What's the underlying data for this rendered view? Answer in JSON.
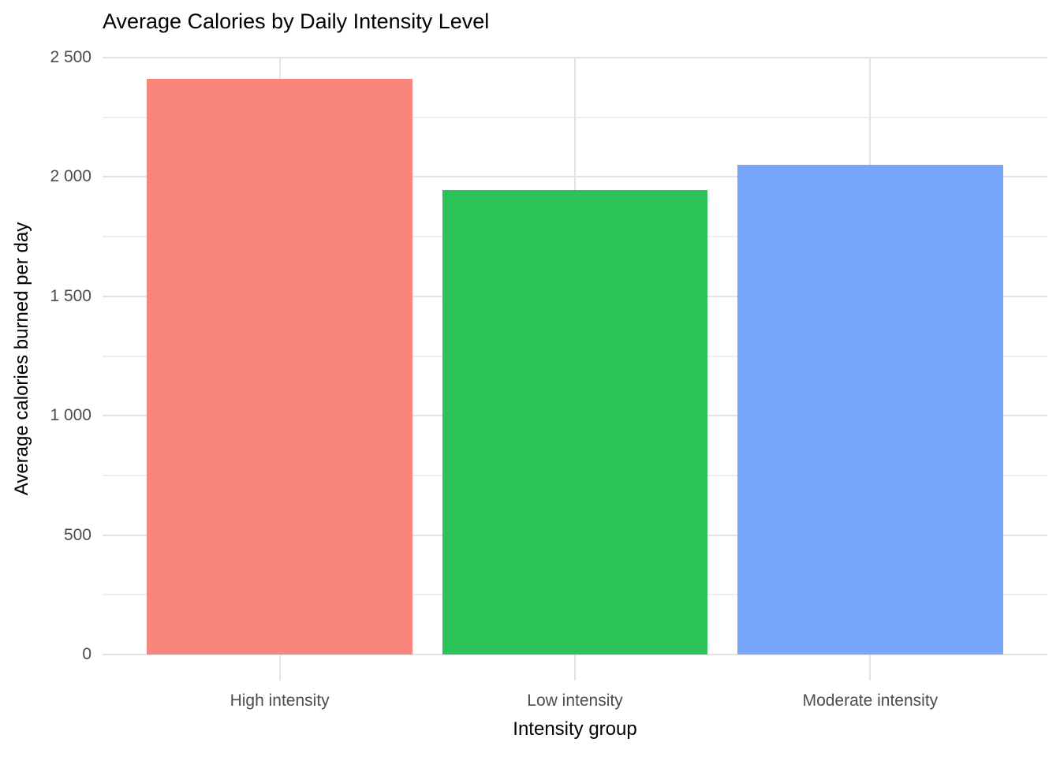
{
  "chart_data": {
    "type": "bar",
    "title": "Average Calories by Daily Intensity Level",
    "xlabel": "Intensity group",
    "ylabel": "Average calories burned per day",
    "categories": [
      "High intensity",
      "Low intensity",
      "Moderate intensity"
    ],
    "values": [
      2410,
      1945,
      2050
    ],
    "bar_colors": [
      "#f8867d",
      "#2bc357",
      "#76a7fa"
    ],
    "ylim": [
      0,
      2500
    ],
    "yticks_major": [
      0,
      500,
      1000,
      1500,
      2000,
      2500
    ],
    "ytick_labels": [
      "0",
      "500",
      "1 000",
      "1 500",
      "2 000",
      "2 500"
    ],
    "yticks_minor": [
      250,
      750,
      1250,
      1750,
      2250
    ],
    "grid": "horizontal majors and minors full-width; vertical majors at category centers",
    "legend_position": "none",
    "bar_width_fraction": 0.9,
    "colors": {
      "background": "#ffffff",
      "grid_major": "#e3e3e3",
      "grid_minor": "#eeeeee",
      "axis_tick": "#e3e3e3",
      "tick_label_text": "#4d4d4d",
      "title_text": "#000000"
    }
  }
}
